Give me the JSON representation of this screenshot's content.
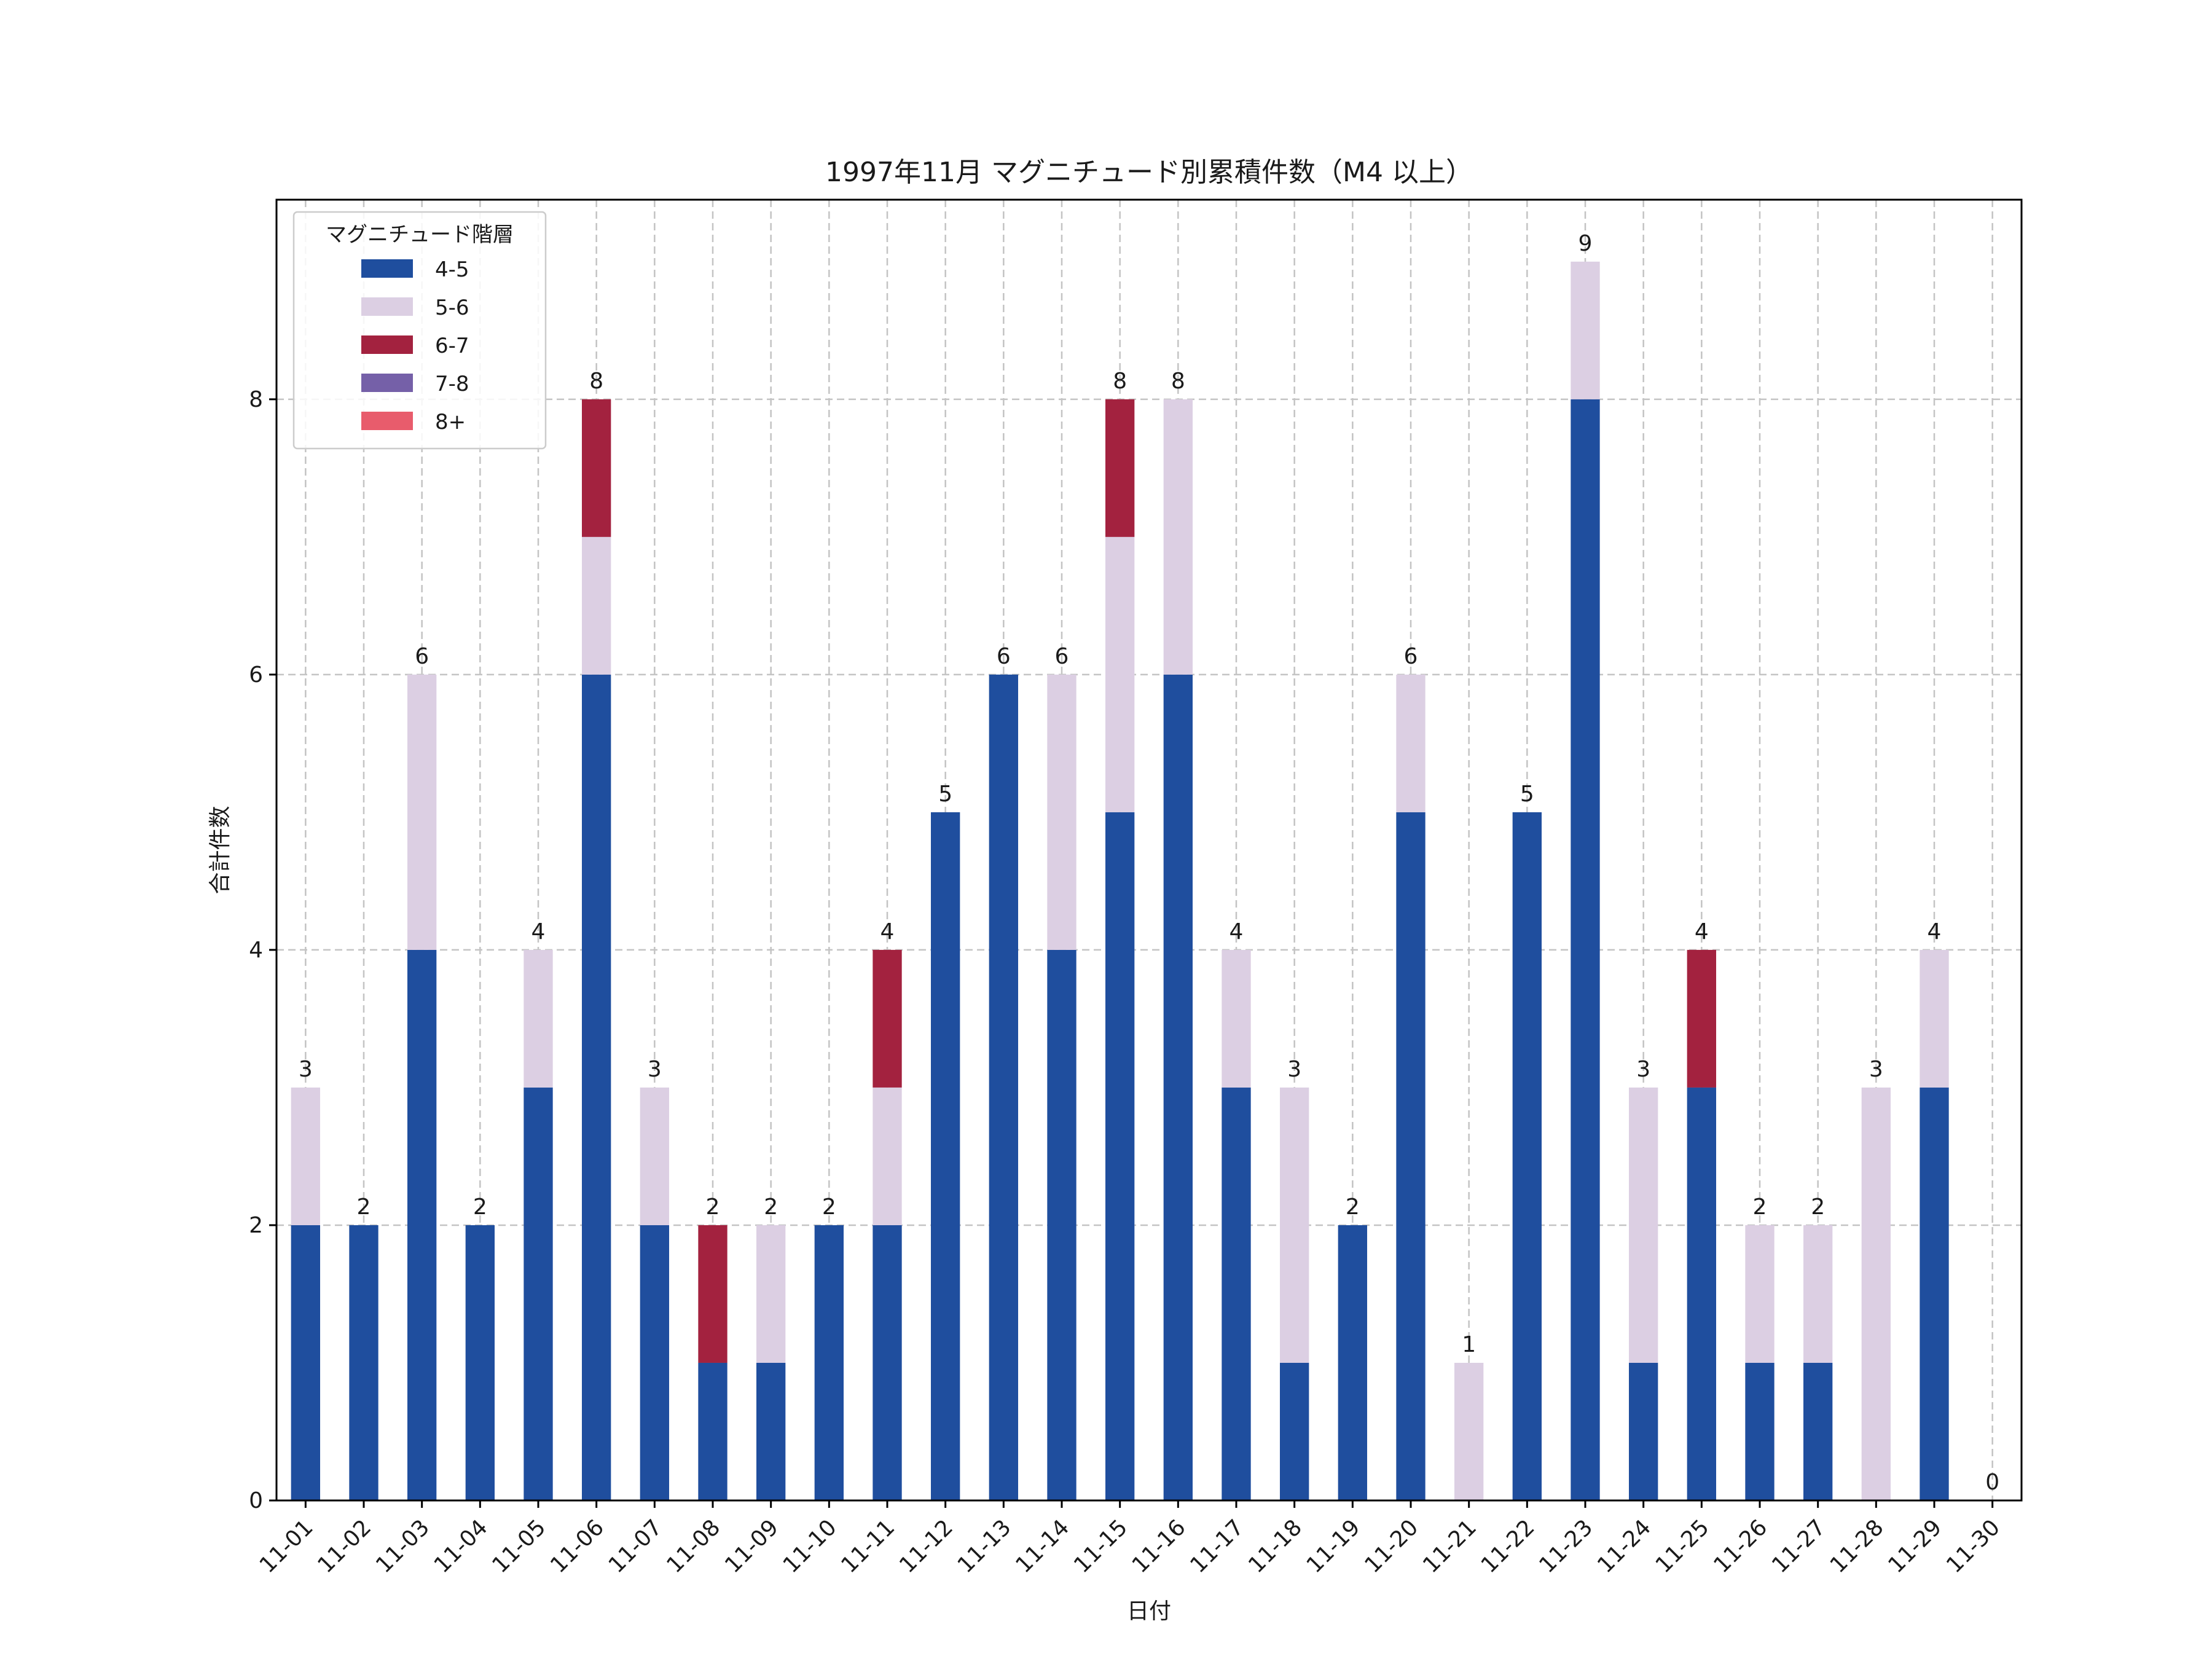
{
  "chart_data": {
    "type": "bar",
    "stacked": true,
    "title": "1997年11月 マグニチュード別累積件数（M4 以上）",
    "xlabel": "日付",
    "ylabel": "合計件数",
    "ylim": [
      0,
      9.45
    ],
    "yticks": [
      0,
      2,
      4,
      6,
      8
    ],
    "grid": true,
    "legend": {
      "title": "マグニチュード階層",
      "placement": "top-left"
    },
    "categories": [
      "11-01",
      "11-02",
      "11-03",
      "11-04",
      "11-05",
      "11-06",
      "11-07",
      "11-08",
      "11-09",
      "11-10",
      "11-11",
      "11-12",
      "11-13",
      "11-14",
      "11-15",
      "11-16",
      "11-17",
      "11-18",
      "11-19",
      "11-20",
      "11-21",
      "11-22",
      "11-23",
      "11-24",
      "11-25",
      "11-26",
      "11-27",
      "11-28",
      "11-29",
      "11-30"
    ],
    "series": [
      {
        "name": "4-5",
        "color": "#1f4e9e",
        "values": [
          2,
          2,
          4,
          2,
          3,
          6,
          2,
          1,
          1,
          2,
          2,
          5,
          6,
          4,
          5,
          6,
          3,
          1,
          2,
          5,
          0,
          5,
          8,
          1,
          3,
          1,
          1,
          0,
          3,
          0
        ]
      },
      {
        "name": "5-6",
        "color": "#dccfe3",
        "values": [
          1,
          0,
          2,
          0,
          1,
          1,
          1,
          0,
          1,
          0,
          1,
          0,
          0,
          2,
          2,
          2,
          1,
          2,
          0,
          1,
          1,
          0,
          1,
          2,
          0,
          1,
          1,
          3,
          1,
          0
        ]
      },
      {
        "name": "6-7",
        "color": "#a3223f",
        "values": [
          0,
          0,
          0,
          0,
          0,
          1,
          0,
          1,
          0,
          0,
          1,
          0,
          0,
          0,
          1,
          0,
          0,
          0,
          0,
          0,
          0,
          0,
          0,
          0,
          1,
          0,
          0,
          0,
          0,
          0
        ]
      },
      {
        "name": "7-8",
        "color": "#7560a8",
        "values": [
          0,
          0,
          0,
          0,
          0,
          0,
          0,
          0,
          0,
          0,
          0,
          0,
          0,
          0,
          0,
          0,
          0,
          0,
          0,
          0,
          0,
          0,
          0,
          0,
          0,
          0,
          0,
          0,
          0,
          0
        ]
      },
      {
        "name": "8+",
        "color": "#e85c6c",
        "values": [
          0,
          0,
          0,
          0,
          0,
          0,
          0,
          0,
          0,
          0,
          0,
          0,
          0,
          0,
          0,
          0,
          0,
          0,
          0,
          0,
          0,
          0,
          0,
          0,
          0,
          0,
          0,
          0,
          0,
          0
        ]
      }
    ],
    "totals": [
      3,
      2,
      6,
      2,
      4,
      8,
      3,
      2,
      2,
      2,
      4,
      5,
      6,
      6,
      8,
      8,
      4,
      3,
      2,
      6,
      1,
      5,
      9,
      3,
      4,
      2,
      2,
      3,
      4,
      0
    ]
  }
}
